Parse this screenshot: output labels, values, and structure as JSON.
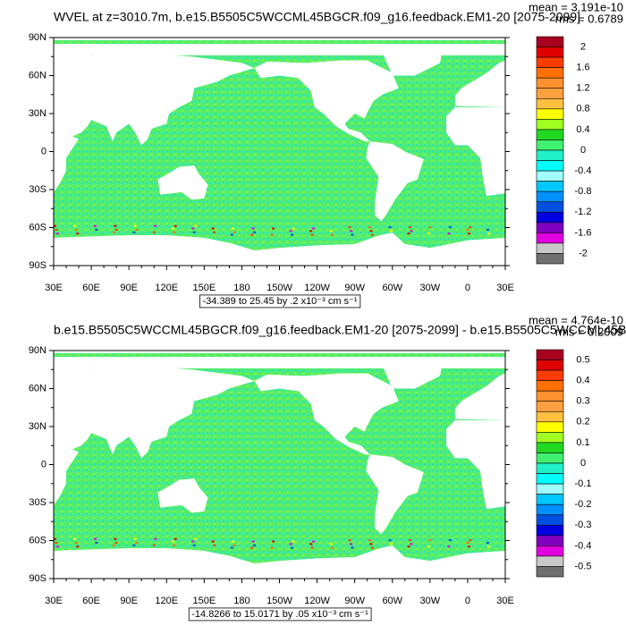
{
  "panels": [
    {
      "title": "WVEL at z=3010.7m, b.e15.B5505C5WCCML45BGCR.f09_g16.feedback.EM1-20 [2075-2099]",
      "mean": "mean = 3.191e-10",
      "rms": "rms = 0.6789",
      "colorbar_labels": [
        "2",
        "1.6",
        "1.2",
        "0.8",
        "0.4",
        "0",
        "-0.4",
        "-0.8",
        "-1.2",
        "-1.6",
        "-2"
      ],
      "info": "-34.389 to 25.45 by .2 x10⁻³ cm s⁻¹"
    },
    {
      "title": "b.e15.B5505C5WCCML45BGCR.f09_g16.feedback.EM1-20 [2075-2099] - b.e15.B5505C5WCCML45BG",
      "mean": "mean = 4.764e-10",
      "rms": "rms = 0.2009",
      "colorbar_labels": [
        "0.5",
        "0.4",
        "0.3",
        "0.2",
        "0.1",
        "0",
        "-0.1",
        "-0.2",
        "-0.3",
        "-0.4",
        "-0.5"
      ],
      "info": "-14.8266 to 15.0171 by .05 x10⁻³ cm s⁻¹"
    }
  ],
  "lat_labels": [
    "90N",
    "60N",
    "30N",
    "0",
    "30S",
    "60S",
    "90S"
  ],
  "lon_labels": [
    "30E",
    "60E",
    "90E",
    "120E",
    "150E",
    "180",
    "150W",
    "120W",
    "90W",
    "60W",
    "30W",
    "0",
    "30E"
  ],
  "colorbar_colors": [
    "#a8001e",
    "#e00000",
    "#ff3c00",
    "#ff7000",
    "#ff9030",
    "#ffa040",
    "#ffc040",
    "#ffff00",
    "#a0ff20",
    "#20d820",
    "#40f070",
    "#20f0c8",
    "#00ffff",
    "#a0ffff",
    "#00c8ff",
    "#0090ff",
    "#0050e0",
    "#0000e0",
    "#8000c0",
    "#e000e0",
    "#c8c8c8",
    "#707070"
  ]
}
